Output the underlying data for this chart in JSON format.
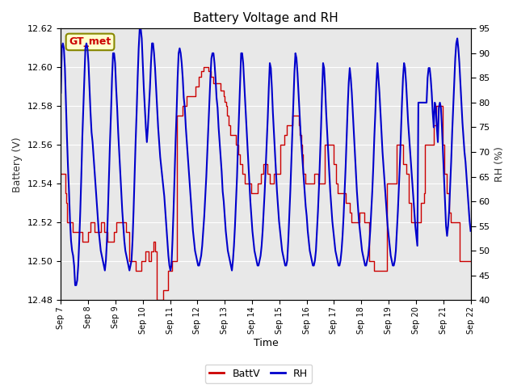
{
  "title": "Battery Voltage and RH",
  "xlabel": "Time",
  "ylabel_left": "Battery (V)",
  "ylabel_right": "RH (%)",
  "annotation": "GT_met",
  "left_ylim": [
    12.48,
    12.62
  ],
  "right_ylim": [
    40,
    95
  ],
  "left_yticks": [
    12.48,
    12.5,
    12.52,
    12.54,
    12.56,
    12.58,
    12.6,
    12.62
  ],
  "right_yticks": [
    40,
    45,
    50,
    55,
    60,
    65,
    70,
    75,
    80,
    85,
    90,
    95
  ],
  "x_tick_labels": [
    "Sep 7",
    "Sep 8",
    "Sep 9",
    "Sep 10",
    "Sep 11",
    "Sep 12",
    "Sep 13",
    "Sep 14",
    "Sep 15",
    "Sep 16",
    "Sep 17",
    "Sep 18",
    "Sep 19",
    "Sep 20",
    "Sep 21",
    "Sep 22"
  ],
  "background_color": "#ffffff",
  "plot_bg_color": "#e8e8e8",
  "batt_color": "#cc0000",
  "rh_color": "#0000cc",
  "legend_labels": [
    "BattV",
    "RH"
  ],
  "grid_color": "#ffffff",
  "batt_data": [
    12.545,
    12.545,
    12.545,
    12.545,
    12.535,
    12.53,
    12.52,
    12.52,
    12.52,
    12.52,
    12.52,
    12.515,
    12.515,
    12.515,
    12.515,
    12.515,
    12.515,
    12.515,
    12.515,
    12.515,
    12.51,
    12.51,
    12.51,
    12.51,
    12.51,
    12.515,
    12.515,
    12.52,
    12.52,
    12.52,
    12.52,
    12.515,
    12.515,
    12.515,
    12.515,
    12.515,
    12.515,
    12.52,
    12.52,
    12.52,
    12.515,
    12.515,
    12.515,
    12.51,
    12.51,
    12.51,
    12.51,
    12.51,
    12.51,
    12.515,
    12.515,
    12.52,
    12.52,
    12.52,
    12.52,
    12.52,
    12.52,
    12.52,
    12.52,
    12.52,
    12.515,
    12.515,
    12.515,
    12.5,
    12.5,
    12.5,
    12.5,
    12.5,
    12.5,
    12.495,
    12.495,
    12.495,
    12.495,
    12.495,
    12.5,
    12.5,
    12.5,
    12.5,
    12.505,
    12.505,
    12.505,
    12.5,
    12.5,
    12.505,
    12.505,
    12.51,
    12.51,
    12.505,
    12.48,
    12.48,
    12.48,
    12.48,
    12.48,
    12.48,
    12.485,
    12.485,
    12.485,
    12.485,
    12.485,
    12.495,
    12.495,
    12.495,
    12.5,
    12.5,
    12.5,
    12.5,
    12.5,
    12.575,
    12.575,
    12.575,
    12.575,
    12.575,
    12.58,
    12.58,
    12.58,
    12.58,
    12.585,
    12.585,
    12.585,
    12.585,
    12.585,
    12.585,
    12.585,
    12.585,
    12.59,
    12.59,
    12.59,
    12.595,
    12.595,
    12.598,
    12.598,
    12.6,
    12.6,
    12.6,
    12.6,
    12.6,
    12.598,
    12.598,
    12.595,
    12.595,
    12.592,
    12.592,
    12.592,
    12.592,
    12.592,
    12.592,
    12.592,
    12.588,
    12.588,
    12.588,
    12.585,
    12.582,
    12.58,
    12.575,
    12.57,
    12.57,
    12.565,
    12.565,
    12.565,
    12.565,
    12.565,
    12.56,
    12.56,
    12.555,
    12.555,
    12.55,
    12.55,
    12.545,
    12.545,
    12.54,
    12.54,
    12.54,
    12.54,
    12.54,
    12.54,
    12.535,
    12.535,
    12.535,
    12.535,
    12.535,
    12.535,
    12.54,
    12.54,
    12.54,
    12.545,
    12.545,
    12.55,
    12.55,
    12.55,
    12.55,
    12.545,
    12.545,
    12.54,
    12.54,
    12.54,
    12.54,
    12.545,
    12.545,
    12.545,
    12.545,
    12.545,
    12.545,
    12.56,
    12.56,
    12.56,
    12.56,
    12.565,
    12.565,
    12.57,
    12.57,
    12.57,
    12.57,
    12.57,
    12.575,
    12.575,
    12.575,
    12.575,
    12.575,
    12.575,
    12.57,
    12.565,
    12.56,
    12.555,
    12.545,
    12.545,
    12.54,
    12.54,
    12.54,
    12.54,
    12.54,
    12.54,
    12.54,
    12.54,
    12.545,
    12.545,
    12.545,
    12.545,
    12.54,
    12.54,
    12.54,
    12.54,
    12.54,
    12.54,
    12.56,
    12.56,
    12.56,
    12.56,
    12.56,
    12.56,
    12.56,
    12.56,
    12.55,
    12.55,
    12.54,
    12.54,
    12.535,
    12.535,
    12.535,
    12.535,
    12.535,
    12.535,
    12.535,
    12.53,
    12.53,
    12.53,
    12.53,
    12.525,
    12.52,
    12.52,
    12.52,
    12.52,
    12.52,
    12.52,
    12.52,
    12.52,
    12.525,
    12.525,
    12.525,
    12.525,
    12.52,
    12.52,
    12.52,
    12.52,
    12.52,
    12.5,
    12.5,
    12.5,
    12.5,
    12.495,
    12.495,
    12.495,
    12.495,
    12.495,
    12.495,
    12.495,
    12.495,
    12.495,
    12.495,
    12.495,
    12.495,
    12.54,
    12.54,
    12.54,
    12.54,
    12.54,
    12.54,
    12.54,
    12.54,
    12.54,
    12.56,
    12.56,
    12.56,
    12.56,
    12.56,
    12.56,
    12.55,
    12.55,
    12.55,
    12.545,
    12.545,
    12.53,
    12.53,
    12.52,
    12.52,
    12.52,
    12.52,
    12.52,
    12.52,
    12.52,
    12.52,
    12.52,
    12.53,
    12.53,
    12.53,
    12.535,
    12.56,
    12.56,
    12.56,
    12.56,
    12.56,
    12.56,
    12.56,
    12.56,
    12.57,
    12.57,
    12.58,
    12.58,
    12.58,
    12.58,
    12.58,
    12.58,
    12.56,
    12.56,
    12.545,
    12.545,
    12.535,
    12.535,
    12.525,
    12.525,
    12.52,
    12.52,
    12.52,
    12.52,
    12.52,
    12.52,
    12.52,
    12.52,
    12.5,
    12.5,
    12.5,
    12.5,
    12.5,
    12.5,
    12.5,
    12.5,
    12.5,
    12.5,
    12.5
  ],
  "rh_data": [
    82,
    91,
    92,
    91,
    87,
    80,
    73,
    67,
    62,
    56,
    52,
    50,
    49,
    47,
    43,
    43,
    44,
    47,
    52,
    58,
    65,
    73,
    79,
    85,
    91,
    92,
    91,
    88,
    83,
    78,
    74,
    72,
    69,
    66,
    63,
    60,
    57,
    54,
    52,
    50,
    49,
    48,
    47,
    46,
    48,
    52,
    58,
    65,
    72,
    78,
    85,
    90,
    90,
    88,
    83,
    79,
    74,
    70,
    66,
    62,
    58,
    55,
    52,
    50,
    49,
    48,
    47,
    46,
    47,
    48,
    52,
    58,
    65,
    72,
    78,
    85,
    91,
    95,
    95,
    93,
    88,
    83,
    79,
    75,
    72,
    75,
    79,
    83,
    88,
    92,
    92,
    90,
    87,
    83,
    79,
    75,
    72,
    69,
    67,
    65,
    63,
    61,
    58,
    55,
    52,
    49,
    47,
    46,
    47,
    52,
    58,
    65,
    72,
    78,
    85,
    90,
    91,
    90,
    88,
    85,
    81,
    79,
    75,
    72,
    69,
    66,
    63,
    60,
    57,
    54,
    52,
    50,
    49,
    48,
    47,
    47,
    48,
    49,
    51,
    54,
    57,
    61,
    65,
    70,
    75,
    80,
    85,
    89,
    90,
    90,
    88,
    85,
    81,
    79,
    75,
    72,
    69,
    66,
    62,
    60,
    57,
    54,
    52,
    50,
    49,
    48,
    47,
    46,
    48,
    51,
    55,
    60,
    65,
    72,
    78,
    84,
    90,
    90,
    88,
    84,
    80,
    76,
    72,
    68,
    64,
    60,
    57,
    54,
    52,
    50,
    49,
    48,
    47,
    47,
    48,
    49,
    51,
    54,
    58,
    62,
    67,
    72,
    77,
    83,
    88,
    87,
    83,
    78,
    74,
    70,
    66,
    62,
    59,
    56,
    54,
    52,
    50,
    49,
    48,
    47,
    47,
    48,
    52,
    57,
    62,
    68,
    74,
    80,
    86,
    90,
    89,
    86,
    82,
    78,
    74,
    71,
    68,
    65,
    62,
    59,
    57,
    54,
    52,
    50,
    49,
    48,
    47,
    47,
    48,
    50,
    54,
    58,
    63,
    69,
    75,
    82,
    88,
    87,
    83,
    78,
    74,
    70,
    66,
    62,
    59,
    56,
    54,
    52,
    50,
    49,
    48,
    47,
    47,
    48,
    50,
    53,
    57,
    62,
    67,
    73,
    79,
    84,
    87,
    85,
    82,
    78,
    74,
    70,
    66,
    62,
    59,
    56,
    54,
    52,
    50,
    49,
    48,
    47,
    47,
    48,
    49,
    51,
    54,
    58,
    62,
    67,
    73,
    78,
    84,
    88,
    85,
    82,
    78,
    74,
    70,
    67,
    64,
    61,
    58,
    55,
    53,
    51,
    49,
    48,
    47,
    47,
    48,
    50,
    54,
    58,
    63,
    68,
    74,
    80,
    85,
    88,
    87,
    84,
    80,
    76,
    73,
    70,
    67,
    64,
    61,
    58,
    55,
    53,
    51,
    80,
    80,
    80,
    80,
    80,
    80,
    80,
    80,
    80,
    85,
    87,
    87,
    85,
    82,
    78,
    75,
    80,
    79,
    75,
    72,
    79,
    80,
    79,
    75,
    70,
    65,
    60,
    55,
    53,
    55,
    58,
    63,
    68,
    74,
    79,
    84,
    89,
    92,
    93,
    91,
    88,
    84,
    80,
    76,
    73,
    70,
    68,
    65,
    62,
    59,
    56,
    54
  ]
}
